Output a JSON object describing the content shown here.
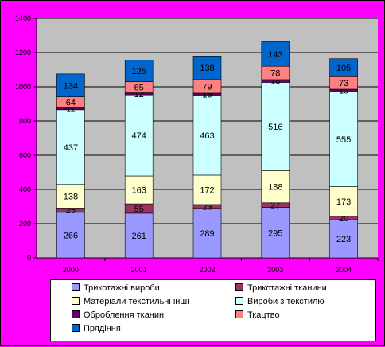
{
  "chart_data": {
    "type": "bar",
    "stacked": true,
    "categories": [
      "2000",
      "2001",
      "2002",
      "2003",
      "2004"
    ],
    "ylim": [
      0,
      1400
    ],
    "yticks": [
      0,
      200,
      400,
      600,
      800,
      1000,
      1200,
      1400
    ],
    "grid": true,
    "legend_position": "bottom",
    "title": "",
    "xlabel": "",
    "ylabel": "",
    "series": [
      {
        "name": "Трикотажні вироби",
        "color": "#9999ff",
        "values": [
          266,
          261,
          289,
          295,
          223
        ]
      },
      {
        "name": "Трикотажні тканини",
        "color": "#993366",
        "values": [
          25,
          55,
          23,
          27,
          20
        ]
      },
      {
        "name": "Матеріали текстильні інші",
        "color": "#ffffcc",
        "values": [
          138,
          163,
          172,
          188,
          173
        ]
      },
      {
        "name": "Вироби з текстилю",
        "color": "#ccffff",
        "values": [
          437,
          474,
          463,
          516,
          555
        ]
      },
      {
        "name": "Оброблення тканин",
        "color": "#660066",
        "values": [
          11,
          12,
          16,
          16,
          15
        ]
      },
      {
        "name": "Ткацтво",
        "color": "#ff8080",
        "values": [
          64,
          65,
          79,
          78,
          73
        ]
      },
      {
        "name": "Прядіння",
        "color": "#0066cc",
        "values": [
          134,
          125,
          138,
          143,
          105
        ]
      }
    ]
  },
  "colors": {
    "background": "#ff00ff",
    "plot_area": "#c0c0c0",
    "gridline": "#000000",
    "text": "#000000"
  }
}
